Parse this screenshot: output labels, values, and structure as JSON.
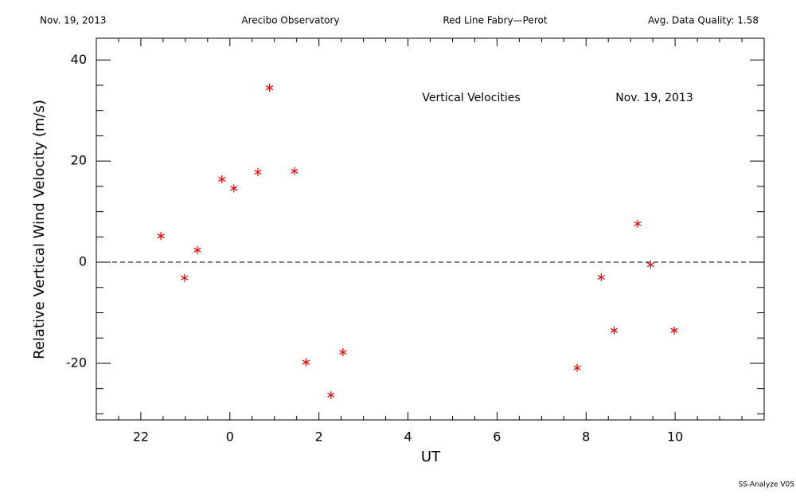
{
  "header": {
    "left": "Nov. 19, 2013",
    "center_left": "Arecibo Observatory",
    "center_right": "Red Line Fabry—Perot",
    "right": "Avg. Data Quality: 1.58"
  },
  "footer": "SS-Analyze V05",
  "chart_data": {
    "type": "scatter",
    "xlabel": "UT",
    "ylabel": "Relative Vertical Wind Velocity (m/s)",
    "annotations": [
      "Vertical Velocities",
      "Nov. 19, 2013"
    ],
    "xlim": [
      -3,
      12
    ],
    "ylim": [
      -31.2,
      44.3
    ],
    "xticks": [
      {
        "value": -2,
        "label": "22"
      },
      0,
      2,
      4,
      6,
      8,
      10
    ],
    "yticks": [
      -20,
      0,
      20,
      40
    ],
    "xminorticks": [
      -2.5,
      -1.5,
      -1,
      -0.5,
      0.5,
      1,
      1.5,
      2.5,
      3,
      3.5,
      4.5,
      5,
      5.5,
      6.5,
      7,
      7.5,
      8.5,
      9,
      9.5,
      10.5,
      11,
      11.5
    ],
    "yminorticks": [
      -30,
      -25,
      -15,
      -10,
      -5,
      5,
      10,
      15,
      25,
      30,
      35
    ],
    "reference_line": 0,
    "color": "#e00000",
    "x": [
      -1.55,
      -1.02,
      -0.73,
      -0.18,
      0.09,
      0.63,
      0.89,
      1.45,
      1.71,
      2.27,
      2.54,
      7.8,
      8.34,
      8.63,
      9.16,
      9.45,
      9.98
    ],
    "values": [
      5.2,
      -3.1,
      2.4,
      16.4,
      14.6,
      17.8,
      34.5,
      18.0,
      -19.8,
      -26.3,
      -17.8,
      -20.9,
      -3.0,
      -13.5,
      7.6,
      -0.5,
      -13.5
    ]
  }
}
